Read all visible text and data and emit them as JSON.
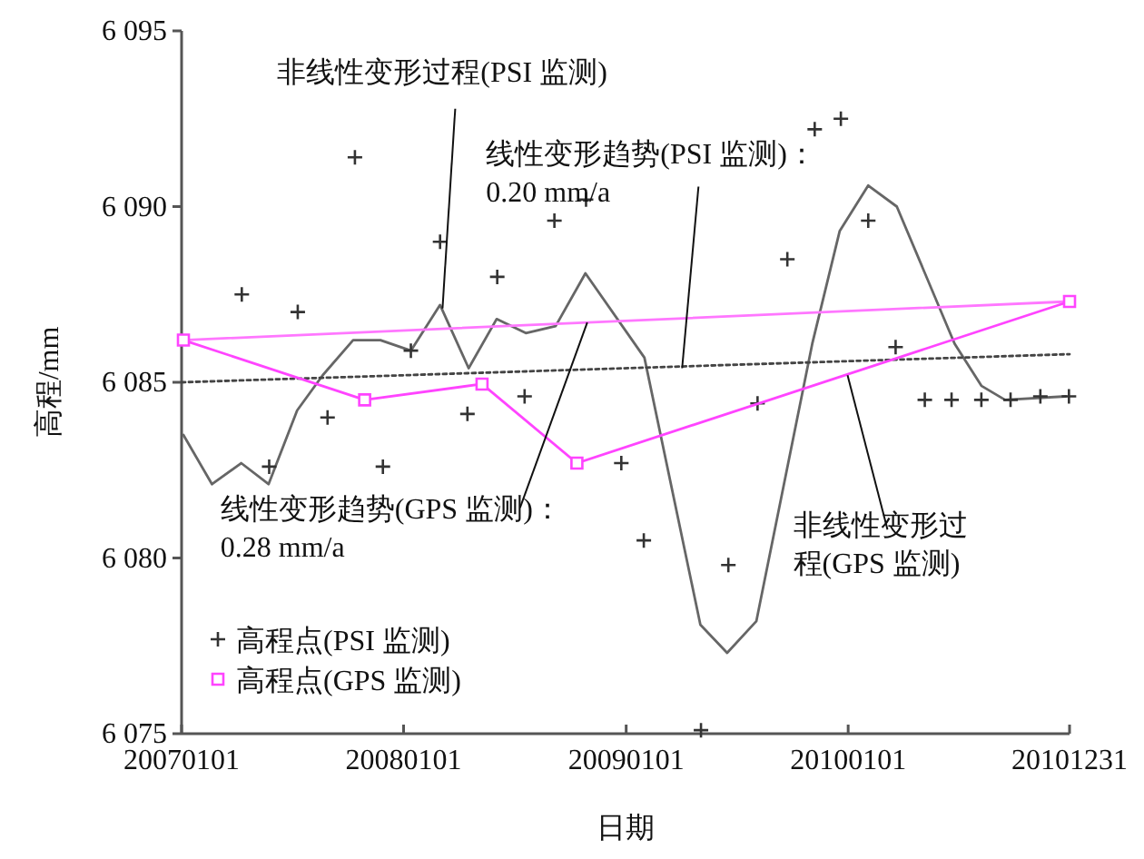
{
  "chart_data": {
    "type": "scatter",
    "xlabel": "日期",
    "ylabel": "高程/mm",
    "grid": false,
    "legend": "bottom left",
    "xlim": [
      "2007-01-01",
      "2010-12-31"
    ],
    "xticks": [
      {
        "value": "2007-01-01",
        "label": "20070101"
      },
      {
        "value": "2008-01-01",
        "label": "20080101"
      },
      {
        "value": "2009-01-01",
        "label": "20090101"
      },
      {
        "value": "2010-01-01",
        "label": "20100101"
      },
      {
        "value": "2010-12-31",
        "label": "20101231"
      }
    ],
    "ylim": [
      6075,
      6095
    ],
    "yticks": [
      {
        "value": 6075,
        "label": "6 075"
      },
      {
        "value": 6080,
        "label": "6 080"
      },
      {
        "value": 6085,
        "label": "6 085"
      },
      {
        "value": 6090,
        "label": "6 090"
      },
      {
        "value": 6095,
        "label": "6 095"
      }
    ],
    "annotations": [
      {
        "text": "非线性变形过程(PSI 监测)",
        "x": "2008-03-05",
        "y": 6087.1
      },
      {
        "text": "线性变形趋势(PSI 监测)：\n0.20 mm/a",
        "x": "2009-04-03",
        "y": 6085.4
      },
      {
        "text": "线性变形趋势(GPS 监测)：\n0.28 mm/a",
        "x": "2008-10-29",
        "y": 6086.7
      },
      {
        "text": "非线性变形过程(GPS 监测)",
        "x": "2009-12-31",
        "y": 6085.2
      }
    ],
    "series": [
      {
        "type": "line",
        "color": "#666666",
        "marker": "none",
        "line_style": "solid",
        "x": [
          "2007-01-04",
          "2007-02-20",
          "2007-04-09",
          "2007-05-24",
          "2007-07-10",
          "2007-08-21",
          "2007-10-10",
          "2007-11-24",
          "2008-01-13",
          "2008-03-01",
          "2008-04-17",
          "2008-06-02",
          "2008-07-20",
          "2008-09-07",
          "2008-10-26",
          "2009-01-31",
          "2009-05-03",
          "2009-06-16",
          "2009-08-03",
          "2009-11-03",
          "2009-12-18",
          "2010-02-03",
          "2010-03-22",
          "2010-06-25",
          "2010-08-08",
          "2010-09-16",
          "2010-12-25"
        ],
        "values": [
          6083.5,
          6082.1,
          6082.7,
          6082.1,
          6084.2,
          6085.2,
          6086.2,
          6086.2,
          6085.9,
          6087.2,
          6085.4,
          6086.8,
          6086.4,
          6086.6,
          6088.1,
          6085.7,
          6078.1,
          6077.3,
          6078.2,
          6086.1,
          6089.3,
          6090.6,
          6090.0,
          6086.1,
          6084.9,
          6084.5,
          6084.6
        ]
      },
      {
        "type": "line",
        "color": "#444444",
        "marker": "none",
        "line_style": "dotted",
        "x": [
          "2007-01-01",
          "2010-12-31"
        ],
        "values": [
          6085.0,
          6085.8
        ]
      },
      {
        "type": "line",
        "color": "#ff77ff",
        "marker": "none",
        "line_style": "solid",
        "x": [
          "2007-01-04",
          "2010-12-31"
        ],
        "values": [
          6086.2,
          6087.3
        ]
      },
      {
        "name": "高程点(PSI 监测)",
        "color": "#333333",
        "marker": "cross",
        "x": [
          "2007-04-10",
          "2007-05-25",
          "2007-07-11",
          "2007-08-29",
          "2007-10-13",
          "2007-11-28",
          "2008-01-13",
          "2008-03-01",
          "2008-04-15",
          "2008-06-03",
          "2008-07-18",
          "2008-09-05",
          "2008-10-27",
          "2008-12-24",
          "2009-01-30",
          "2009-05-04",
          "2009-06-18",
          "2009-08-05",
          "2009-09-23",
          "2009-11-07",
          "2009-12-20",
          "2010-02-03",
          "2010-03-20",
          "2010-05-07",
          "2010-06-20",
          "2010-08-08",
          "2010-09-25",
          "2010-11-13",
          "2010-12-30"
        ],
        "values": [
          6087.5,
          6082.6,
          6087.0,
          6084.0,
          6091.4,
          6082.6,
          6085.9,
          6089.0,
          6084.1,
          6088.0,
          6084.6,
          6089.6,
          6090.2,
          6082.7,
          6080.5,
          6075.1,
          6079.8,
          6084.4,
          6088.5,
          6092.2,
          6092.5,
          6089.6,
          6086.0,
          6084.5,
          6084.5,
          6084.5,
          6084.5,
          6084.6,
          6084.6
        ]
      },
      {
        "type": "line",
        "name": "高程点(GPS 监测)",
        "color": "#ff44ff",
        "marker": "square",
        "line_style": "solid",
        "x": [
          "2007-01-04",
          "2007-10-29",
          "2008-05-09",
          "2008-10-12",
          "2010-12-31"
        ],
        "values": [
          6086.2,
          6084.5,
          6084.95,
          6082.7,
          6087.3
        ]
      }
    ]
  }
}
